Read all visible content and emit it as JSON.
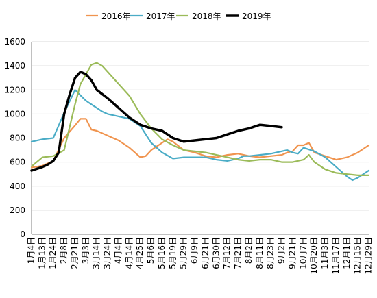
{
  "chart_data": {
    "type": "line",
    "title": "",
    "xlabel": "",
    "ylabel": "",
    "ylim": [
      0,
      1600
    ],
    "yticks": [
      0,
      200,
      400,
      600,
      800,
      1000,
      1200,
      1400,
      1600
    ],
    "grid": "horizontal",
    "legend_position": "top",
    "categories": [
      "1月4日",
      "1月13日",
      "1月24日",
      "2月8日",
      "2月21日",
      "3月3日",
      "3月14日",
      "3月24日",
      "4月4日",
      "4月14日",
      "4月25日",
      "5月6日",
      "5月16日",
      "5月19日",
      "5月29日",
      "6月9日",
      "6月21日",
      "6月30日",
      "7月12日",
      "7月21日",
      "8月2日",
      "8月11日",
      "8月23日",
      "9月2日",
      "9月21日",
      "10月7日",
      "10月20日",
      "11月3日",
      "11月17日",
      "12月1日",
      "12月15日",
      "12月29日"
    ],
    "series": [
      {
        "name": "2016年",
        "color": "#F0944F",
        "width": 2.2,
        "x": [
          0,
          1,
          2,
          3,
          4,
          4.5,
          5,
          5.5,
          6,
          7,
          8,
          9,
          10,
          10.5,
          11,
          12,
          12.5,
          13,
          14,
          15,
          16,
          17,
          17.5,
          18,
          19,
          19.5,
          20,
          21,
          22,
          23,
          23.5,
          24,
          24.5,
          25,
          25.5,
          26,
          27,
          28,
          29,
          30,
          31
        ],
        "values": [
          555,
          570,
          610,
          800,
          905,
          960,
          960,
          870,
          860,
          820,
          780,
          720,
          640,
          650,
          700,
          760,
          790,
          770,
          700,
          680,
          650,
          640,
          650,
          660,
          670,
          660,
          650,
          640,
          650,
          660,
          680,
          690,
          740,
          740,
          760,
          680,
          650,
          620,
          640,
          680,
          740
        ]
      },
      {
        "name": "2017年",
        "color": "#4AACC6",
        "width": 2.2,
        "x": [
          0,
          1,
          2,
          3,
          4,
          5,
          6,
          6.5,
          7,
          8,
          9,
          10,
          11,
          12,
          13,
          14,
          15,
          16,
          17,
          18,
          19,
          19.5,
          20,
          21,
          22,
          23,
          23.5,
          24,
          24.5,
          25,
          26,
          27,
          28,
          28.5,
          29,
          29.5,
          30,
          31
        ],
        "values": [
          770,
          790,
          800,
          1010,
          1200,
          1110,
          1050,
          1020,
          1000,
          980,
          960,
          900,
          760,
          680,
          630,
          640,
          640,
          640,
          620,
          610,
          630,
          650,
          650,
          660,
          670,
          690,
          700,
          680,
          670,
          720,
          690,
          640,
          560,
          520,
          480,
          450,
          470,
          530
        ]
      },
      {
        "name": "2018年",
        "color": "#9BBB59",
        "width": 2.2,
        "x": [
          0,
          1,
          2,
          3,
          4,
          4.5,
          5,
          5.5,
          6,
          6.5,
          7,
          8,
          9,
          10,
          11,
          12,
          13,
          14,
          15,
          16,
          17,
          18,
          19,
          20,
          21,
          22,
          23,
          24,
          25,
          25.5,
          26,
          27,
          28,
          29,
          30,
          31
        ],
        "values": [
          565,
          640,
          650,
          700,
          1080,
          1250,
          1330,
          1410,
          1425,
          1400,
          1350,
          1250,
          1150,
          1000,
          880,
          790,
          740,
          700,
          690,
          680,
          660,
          640,
          620,
          610,
          620,
          620,
          600,
          600,
          620,
          660,
          600,
          540,
          510,
          500,
          490,
          490
        ]
      },
      {
        "name": "2019年",
        "color": "#000000",
        "width": 3.5,
        "x": [
          0,
          1,
          1.5,
          2,
          2.5,
          3,
          3.5,
          4,
          4.5,
          5,
          5.5,
          6,
          7,
          8,
          9,
          10,
          11,
          11.5,
          12,
          13,
          14,
          15,
          16,
          17,
          18,
          19,
          20,
          21,
          22,
          23
        ],
        "values": [
          530,
          560,
          580,
          610,
          680,
          1000,
          1160,
          1300,
          1350,
          1330,
          1280,
          1200,
          1130,
          1050,
          970,
          910,
          880,
          870,
          860,
          800,
          770,
          780,
          790,
          800,
          830,
          860,
          880,
          910,
          900,
          890
        ]
      }
    ]
  }
}
